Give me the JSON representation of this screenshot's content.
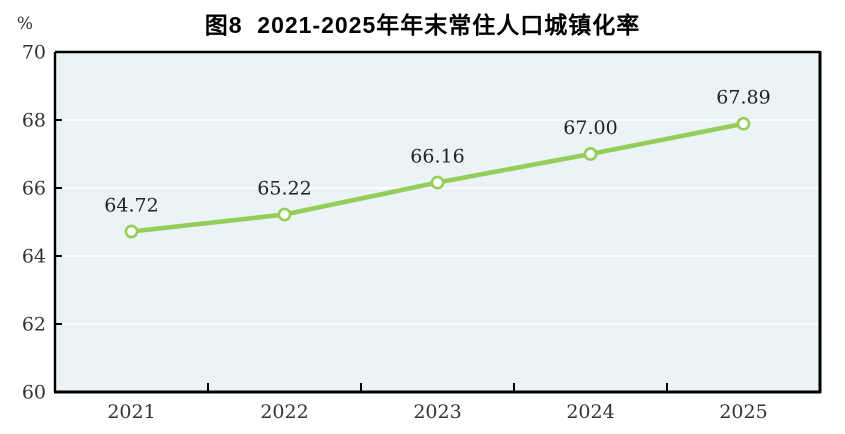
{
  "page": {
    "title": "图8  2021-2025年年末常住人口城镇化率",
    "unit_label": "%"
  },
  "colors": {
    "line": "#94cd58",
    "marker_fill": "#fcfef9",
    "marker_stroke": "#94cd58",
    "plot_bg": "#ebf3f6",
    "grid": "#ffffff",
    "axis": "#000000",
    "tick_text": "#333333",
    "data_label_text": "#222222",
    "title_text": "#000000"
  },
  "chart_data": {
    "type": "line",
    "title": "图8  2021-2025年年末常住人口城镇化率",
    "categories": [
      "2021",
      "2022",
      "2023",
      "2024",
      "2025"
    ],
    "series": [
      {
        "name": "年末常住人口城镇化率",
        "values": [
          64.72,
          65.22,
          66.16,
          67.0,
          67.89
        ],
        "data_labels": [
          "64.72",
          "65.22",
          "66.16",
          "67.00",
          "67.89"
        ]
      }
    ],
    "xlabel": "",
    "ylabel": "%",
    "ylim": [
      60,
      70
    ],
    "yticks": [
      60,
      62,
      64,
      66,
      68,
      70
    ],
    "grid": true,
    "legend": false,
    "marker": "open-circle",
    "ticks_between_categories": true
  }
}
